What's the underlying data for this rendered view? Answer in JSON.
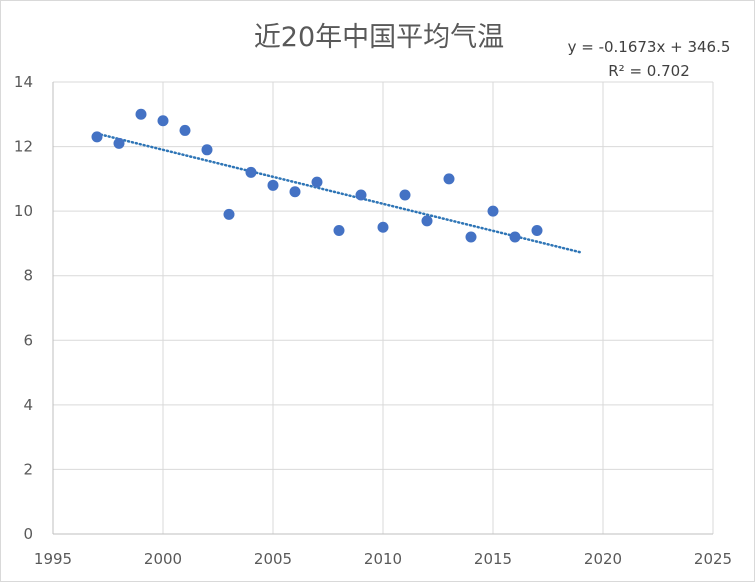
{
  "chart_data": {
    "type": "scatter",
    "title": "近20年中国平均气温",
    "xlabel": "",
    "ylabel": "",
    "xlim": [
      1995,
      2025
    ],
    "ylim": [
      0,
      14
    ],
    "xticks": [
      1995,
      2000,
      2005,
      2010,
      2015,
      2020,
      2025
    ],
    "yticks": [
      0,
      2,
      4,
      6,
      8,
      10,
      12,
      14
    ],
    "grid": true,
    "legend": "none",
    "marker_color": "#4472c4",
    "trendline_color": "#2e75b6",
    "series": [
      {
        "x": [
          1997,
          1998,
          1999,
          2000,
          2001,
          2002,
          2003,
          2004,
          2005,
          2006,
          2007,
          2008,
          2009,
          2010,
          2011,
          2012,
          2013,
          2014,
          2015,
          2016,
          2017
        ],
        "y": [
          12.3,
          12.1,
          13.0,
          12.8,
          12.5,
          11.9,
          9.9,
          11.2,
          10.8,
          10.6,
          10.9,
          9.4,
          10.5,
          9.5,
          10.5,
          9.7,
          11.0,
          9.2,
          10.0,
          9.2,
          9.4
        ]
      }
    ],
    "trendline": {
      "type": "linear",
      "slope": -0.1673,
      "intercept": 346.5,
      "x_range": [
        1997,
        2019
      ],
      "equation_text": "y = -0.1673x + 346.5",
      "r2_text": "R² = 0.702"
    }
  }
}
